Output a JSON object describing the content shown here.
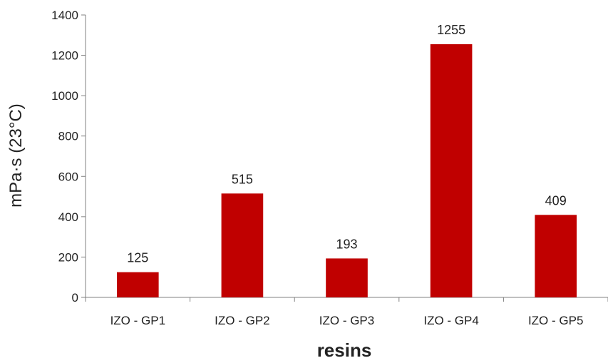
{
  "chart_data": {
    "type": "bar",
    "title": "",
    "xlabel": "resins",
    "ylabel": "mPa·s (23°C)",
    "categories": [
      "IZO - GP1",
      "IZO - GP2",
      "IZO - GP3",
      "IZO - GP4",
      "IZO - GP5"
    ],
    "values": [
      125,
      515,
      193,
      1255,
      409
    ],
    "data_labels": [
      "125",
      "515",
      "193",
      "1255",
      "409"
    ],
    "ylim": [
      0,
      1400
    ],
    "yticks": [
      0,
      200,
      400,
      600,
      800,
      1000,
      1200,
      1400
    ],
    "grid": false,
    "legend": "none",
    "bar_color": "#c00000",
    "axis_color": "#808080"
  }
}
